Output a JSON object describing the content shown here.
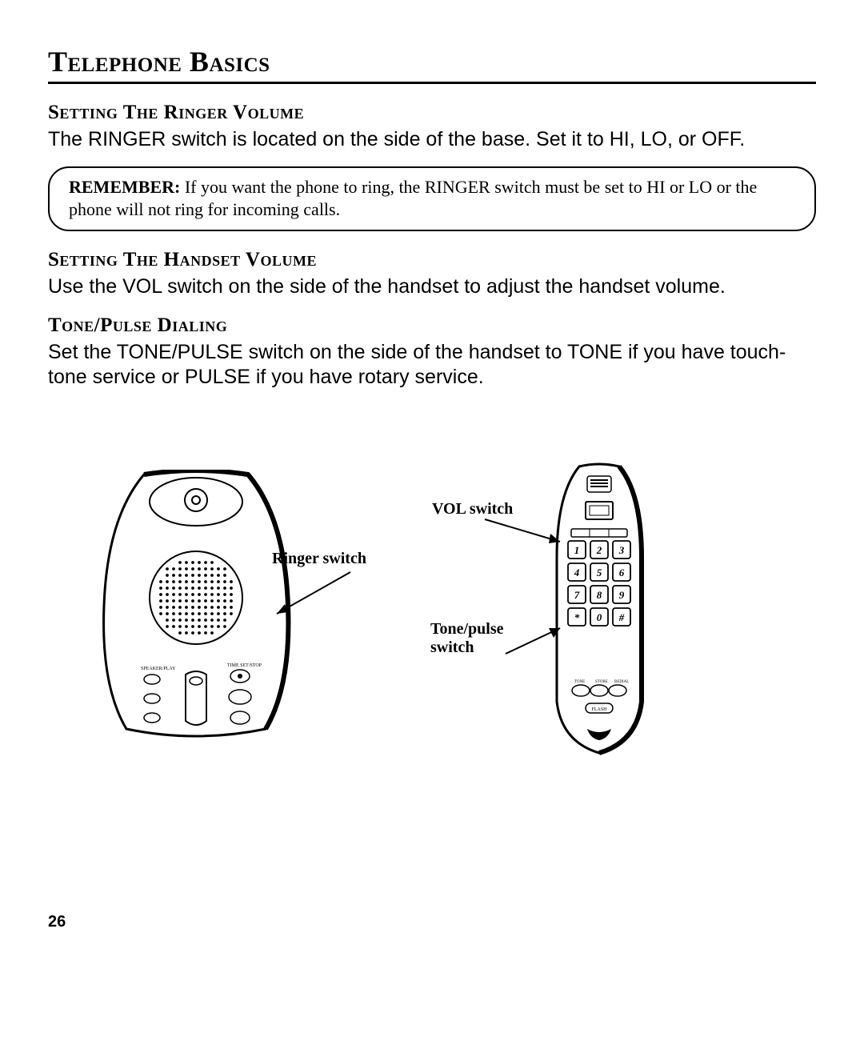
{
  "title": "Telephone Basics",
  "sections": {
    "ringer": {
      "heading": "Setting The Ringer Volume",
      "body": "The RINGER switch is located on the side of the base. Set it to HI, LO, or OFF."
    },
    "remember": {
      "lead": "REMEMBER:",
      "body": " If you want the phone to ring, the RINGER switch must be set to HI or LO or the phone will not ring for incoming calls."
    },
    "handset": {
      "heading": "Setting The Handset Volume",
      "body": "Use the VOL switch on the side of the handset to adjust the handset volume."
    },
    "tone": {
      "heading": "Tone/Pulse Dialing",
      "body": "Set the TONE/PULSE switch on the side of the handset to TONE if you have touch-tone service or PULSE if you have rotary service."
    }
  },
  "figure": {
    "base_label": "Ringer switch",
    "vol_label": "VOL switch",
    "tonepulse_label": "Tone/pulse\nswitch",
    "keypad": [
      "1",
      "2",
      "3",
      "4",
      "5",
      "6",
      "7",
      "8",
      "9",
      "*",
      "0",
      "#"
    ]
  },
  "page_number": "26",
  "style": {
    "title_fontsize": 36,
    "subhead_fontsize": 25,
    "body_fontsize": 25,
    "callout_fontsize": 22,
    "label_fontsize": 20,
    "colors": {
      "text": "#000000",
      "bg": "#ffffff",
      "rule": "#000000"
    }
  }
}
